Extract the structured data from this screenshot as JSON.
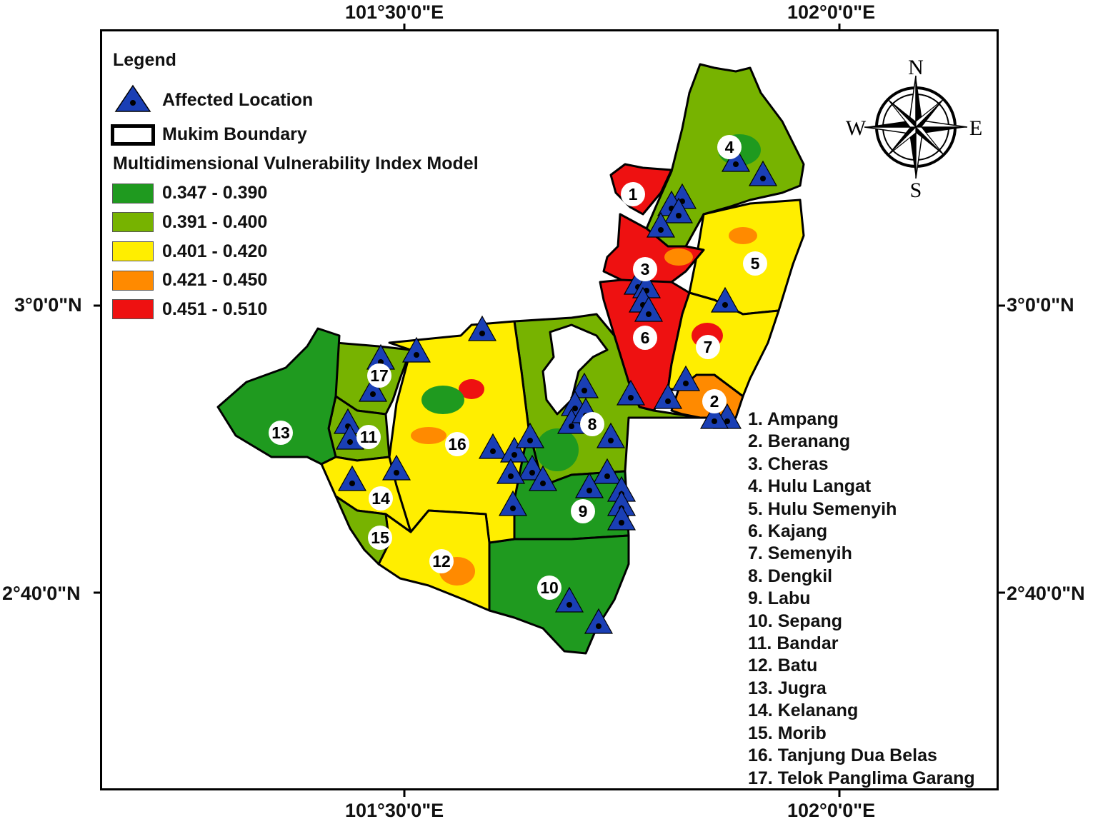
{
  "coordinates": {
    "top_left_lon": "101°30'0\"E",
    "top_right_lon": "102°0'0\"E",
    "bottom_left_lon": "101°30'0\"E",
    "bottom_right_lon": "102°0'0\"E",
    "left_upper_lat": "3°0'0\"N",
    "left_lower_lat": "2°40'0\"N",
    "right_upper_lat": "3°0'0\"N",
    "right_lower_lat": "2°40'0\"N"
  },
  "legend": {
    "title": "Legend",
    "affected_location": "Affected Location",
    "mukim_boundary": "Mukim Boundary",
    "index_title": "Multidimensional Vulnerability Index Model",
    "classes": [
      {
        "label": "0.347 - 0.390",
        "color": "#1f9a1f"
      },
      {
        "label": "0.391 - 0.400",
        "color": "#77b300"
      },
      {
        "label": "0.401 - 0.420",
        "color": "#ffee00"
      },
      {
        "label": "0.421 - 0.450",
        "color": "#ff8a00"
      },
      {
        "label": "0.451 - 0.510",
        "color": "#ee1111"
      }
    ]
  },
  "compass": {
    "north": "N",
    "south": "S",
    "east": "E",
    "west": "W"
  },
  "mukims": [
    "1. Ampang",
    "2. Beranang",
    "3. Cheras",
    "4. Hulu Langat",
    "5. Hulu Semenyih",
    "6. Kajang",
    "7. Semenyih",
    "8. Dengkil",
    "9. Labu",
    "10. Sepang",
    "11. Bandar",
    "12. Batu",
    "13. Jugra",
    "14. Kelanang",
    "15. Morib",
    "16. Tanjung Dua Belas",
    "17. Telok Panglima Garang"
  ],
  "region_numbers": [
    "1",
    "2",
    "3",
    "4",
    "5",
    "6",
    "7",
    "8",
    "9",
    "10",
    "11",
    "12",
    "13",
    "14",
    "15",
    "16",
    "17"
  ],
  "marker_colors": {
    "fill": "#1a3fb5",
    "dot": "#000000"
  }
}
